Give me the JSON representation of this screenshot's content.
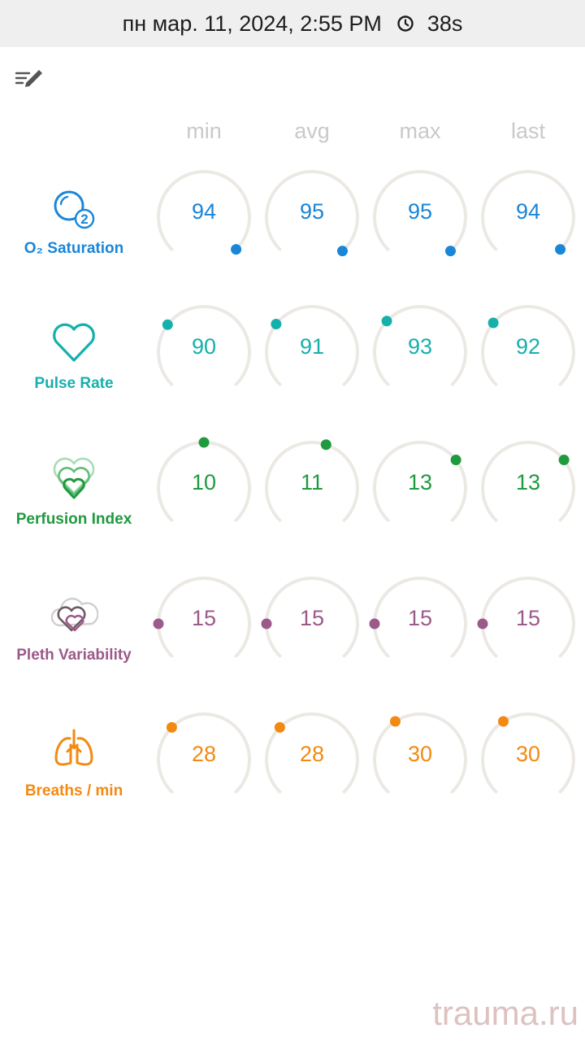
{
  "topbar": {
    "datetime": "пн мар. 11, 2024, 2:55 PM",
    "duration": "38s",
    "clock_icon": "clock-icon"
  },
  "toolbar": {
    "edit_icon": "edit-list-icon"
  },
  "columns": [
    "min",
    "avg",
    "max",
    "last"
  ],
  "metrics": [
    {
      "key": "spo2",
      "label": "O₂ Saturation",
      "color": "#1a86d8",
      "icon": "o2-bubble-icon",
      "values": [
        "94",
        "95",
        "95",
        "94"
      ],
      "indicator_angles_deg": [
        135,
        138,
        138,
        135
      ]
    },
    {
      "key": "pulse",
      "label": "Pulse Rate",
      "color": "#16b0ab",
      "icon": "heart-outline-icon",
      "values": [
        "90",
        "91",
        "93",
        "92"
      ],
      "indicator_angles_deg": [
        -53,
        -52,
        -47,
        -50
      ]
    },
    {
      "key": "pi",
      "label": "Perfusion Index",
      "color": "#1f9a3e",
      "icon": "layered-hearts-icon",
      "values": [
        "10",
        "11",
        "13",
        "13"
      ],
      "indicator_angles_deg": [
        0,
        18,
        52,
        52
      ]
    },
    {
      "key": "pvi",
      "label": "Pleth Variability",
      "color": "#9c5a8a",
      "icon": "cloud-heart-icon",
      "values": [
        "15",
        "15",
        "15",
        "15"
      ],
      "indicator_angles_deg": [
        -90,
        -90,
        -90,
        -90
      ]
    },
    {
      "key": "rr",
      "label": "Breaths / min",
      "color": "#f28a12",
      "icon": "lungs-icon",
      "values": [
        "28",
        "28",
        "30",
        "30"
      ],
      "indicator_angles_deg": [
        -45,
        -45,
        -33,
        -33
      ]
    }
  ],
  "watermark": "trauma.ru"
}
